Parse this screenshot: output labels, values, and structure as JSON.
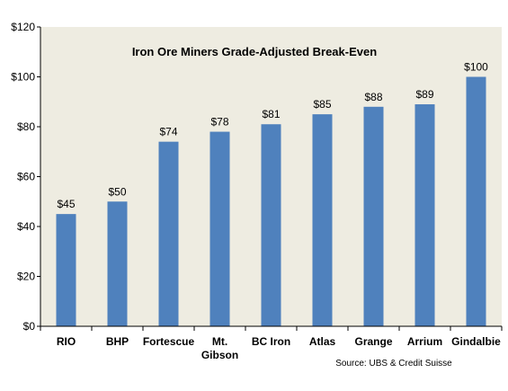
{
  "chart_data": {
    "type": "bar",
    "title": "Iron Ore Miners Grade-Adjusted Break-Even",
    "source": "Source: UBS & Credit Suisse",
    "categories": [
      "RIO",
      "BHP",
      "Fortescue",
      "Mt. Gibson",
      "BC Iron",
      "Atlas",
      "Grange",
      "Arrium",
      "Gindalbie"
    ],
    "values": [
      45,
      50,
      74,
      78,
      81,
      85,
      88,
      89,
      100
    ],
    "value_labels": [
      "$45",
      "$50",
      "$74",
      "$78",
      "$81",
      "$85",
      "$88",
      "$89",
      "$100"
    ],
    "y_ticks": [
      0,
      20,
      40,
      60,
      80,
      100,
      120
    ],
    "y_tick_labels": [
      "$0",
      "$20",
      "$40",
      "$60",
      "$80",
      "$100",
      "$120"
    ],
    "ylim": [
      0,
      120
    ],
    "xlabel": "",
    "ylabel": "",
    "grid": false,
    "legend": "none",
    "colors": {
      "bar": "#4f81bd",
      "plot_background": "#eeece1",
      "axis": "#000000"
    }
  }
}
